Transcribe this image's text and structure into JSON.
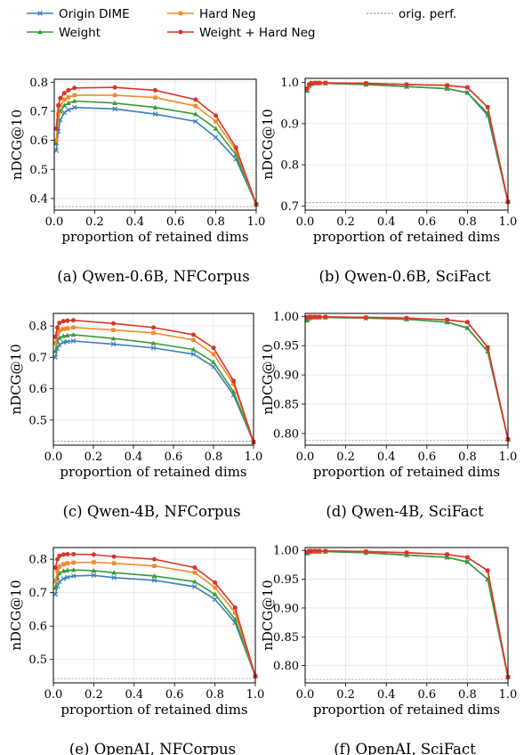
{
  "legend": [
    {
      "label": "Origin DIME",
      "color": "#3a7fb8",
      "marker": "x"
    },
    {
      "label": "Hard Neg",
      "color": "#f28a2b",
      "marker": "square"
    },
    {
      "label": "orig. perf.",
      "color": "#888888",
      "marker": "dash"
    },
    {
      "label": "Weight",
      "color": "#3a9a3a",
      "marker": "triangle"
    },
    {
      "label": "Weight + Hard Neg",
      "color": "#d8352a",
      "marker": "circle"
    }
  ],
  "chart_data": [
    {
      "type": "line",
      "caption": "(a) Qwen-0.6B, NFCorpus",
      "xlabel": "proportion of retained dims",
      "ylabel": "nDCG@10",
      "xlim": [
        0,
        1.0
      ],
      "ylim": [
        0.36,
        0.81
      ],
      "xticks": [
        "0.0",
        "0.2",
        "0.4",
        "0.6",
        "0.8",
        "1.0"
      ],
      "yticks": [
        "0.4",
        "0.5",
        "0.6",
        "0.7",
        "0.8"
      ],
      "grid": true,
      "orig_perf": 0.372,
      "series": [
        {
          "name": "Origin DIME",
          "x": [
            0.01,
            0.02,
            0.03,
            0.05,
            0.07,
            0.1,
            0.3,
            0.5,
            0.7,
            0.8,
            0.9,
            1.0
          ],
          "y": [
            0.565,
            0.63,
            0.67,
            0.695,
            0.705,
            0.713,
            0.708,
            0.69,
            0.665,
            0.61,
            0.535,
            0.38
          ]
        },
        {
          "name": "Hard Neg",
          "x": [
            0.01,
            0.02,
            0.03,
            0.05,
            0.07,
            0.1,
            0.3,
            0.5,
            0.7,
            0.8,
            0.9,
            1.0
          ],
          "y": [
            0.6,
            0.69,
            0.72,
            0.74,
            0.748,
            0.755,
            0.755,
            0.747,
            0.718,
            0.665,
            0.565,
            0.38
          ]
        },
        {
          "name": "Weight",
          "x": [
            0.01,
            0.02,
            0.03,
            0.05,
            0.07,
            0.1,
            0.3,
            0.5,
            0.7,
            0.8,
            0.9,
            1.0
          ],
          "y": [
            0.59,
            0.675,
            0.7,
            0.72,
            0.728,
            0.735,
            0.728,
            0.713,
            0.69,
            0.64,
            0.55,
            0.38
          ]
        },
        {
          "name": "Weight + Hard Neg",
          "x": [
            0.01,
            0.02,
            0.03,
            0.05,
            0.07,
            0.1,
            0.3,
            0.5,
            0.7,
            0.8,
            0.9,
            1.0
          ],
          "y": [
            0.64,
            0.72,
            0.745,
            0.762,
            0.772,
            0.78,
            0.782,
            0.772,
            0.74,
            0.685,
            0.575,
            0.38
          ]
        }
      ]
    },
    {
      "type": "line",
      "caption": "(b) Qwen-0.6B, SciFact",
      "xlabel": "proportion of retained dims",
      "ylabel": "nDCG@10",
      "xlim": [
        0,
        1.0
      ],
      "ylim": [
        0.69,
        1.01
      ],
      "xticks": [
        "0.0",
        "0.2",
        "0.4",
        "0.6",
        "0.8",
        "1.0"
      ],
      "yticks": [
        "0.7",
        "0.8",
        "0.9",
        "1.0"
      ],
      "grid": true,
      "orig_perf": 0.708,
      "series": [
        {
          "name": "Origin DIME",
          "x": [
            0.01,
            0.02,
            0.03,
            0.05,
            0.07,
            0.1,
            0.3,
            0.5,
            0.7,
            0.8,
            0.9,
            1.0
          ],
          "y": [
            0.98,
            0.992,
            0.996,
            0.998,
            0.998,
            0.998,
            0.995,
            0.99,
            0.985,
            0.975,
            0.92,
            0.71
          ]
        },
        {
          "name": "Hard Neg",
          "x": [
            0.01,
            0.02,
            0.03,
            0.05,
            0.07,
            0.1,
            0.3,
            0.5,
            0.7,
            0.8,
            0.9,
            1.0
          ],
          "y": [
            0.985,
            0.995,
            0.998,
            0.999,
            0.999,
            0.999,
            0.998,
            0.995,
            0.993,
            0.988,
            0.94,
            0.71
          ]
        },
        {
          "name": "Weight",
          "x": [
            0.01,
            0.02,
            0.03,
            0.05,
            0.07,
            0.1,
            0.3,
            0.5,
            0.7,
            0.8,
            0.9,
            1.0
          ],
          "y": [
            0.98,
            0.992,
            0.996,
            0.998,
            0.998,
            0.998,
            0.995,
            0.99,
            0.985,
            0.975,
            0.925,
            0.71
          ]
        },
        {
          "name": "Weight + Hard Neg",
          "x": [
            0.01,
            0.02,
            0.03,
            0.05,
            0.07,
            0.1,
            0.3,
            0.5,
            0.7,
            0.8,
            0.9,
            1.0
          ],
          "y": [
            0.985,
            0.995,
            0.998,
            0.999,
            0.999,
            0.999,
            0.998,
            0.995,
            0.993,
            0.988,
            0.94,
            0.71
          ]
        }
      ]
    },
    {
      "type": "line",
      "caption": "(c) Qwen-4B, NFCorpus",
      "xlabel": "proportion of retained dims",
      "ylabel": "nDCG@10",
      "xlim": [
        0,
        1.0
      ],
      "ylim": [
        0.42,
        0.84
      ],
      "xticks": [
        "0.0",
        "0.2",
        "0.4",
        "0.6",
        "0.8",
        "1.0"
      ],
      "yticks": [
        "0.5",
        "0.6",
        "0.7",
        "0.8"
      ],
      "grid": true,
      "orig_perf": 0.433,
      "series": [
        {
          "name": "Origin DIME",
          "x": [
            0.01,
            0.02,
            0.03,
            0.05,
            0.07,
            0.1,
            0.3,
            0.5,
            0.7,
            0.8,
            0.9,
            1.0
          ],
          "y": [
            0.7,
            0.728,
            0.74,
            0.748,
            0.75,
            0.752,
            0.742,
            0.73,
            0.71,
            0.67,
            0.58,
            0.43
          ]
        },
        {
          "name": "Hard Neg",
          "x": [
            0.01,
            0.02,
            0.03,
            0.05,
            0.07,
            0.1,
            0.3,
            0.5,
            0.7,
            0.8,
            0.9,
            1.0
          ],
          "y": [
            0.745,
            0.775,
            0.785,
            0.79,
            0.792,
            0.795,
            0.787,
            0.778,
            0.755,
            0.71,
            0.615,
            0.43
          ]
        },
        {
          "name": "Weight",
          "x": [
            0.01,
            0.02,
            0.03,
            0.05,
            0.07,
            0.1,
            0.3,
            0.5,
            0.7,
            0.8,
            0.9,
            1.0
          ],
          "y": [
            0.72,
            0.75,
            0.762,
            0.768,
            0.77,
            0.772,
            0.76,
            0.745,
            0.725,
            0.685,
            0.59,
            0.43
          ]
        },
        {
          "name": "Weight + Hard Neg",
          "x": [
            0.01,
            0.02,
            0.03,
            0.05,
            0.07,
            0.1,
            0.3,
            0.5,
            0.7,
            0.8,
            0.9,
            1.0
          ],
          "y": [
            0.765,
            0.795,
            0.81,
            0.815,
            0.817,
            0.818,
            0.808,
            0.795,
            0.772,
            0.73,
            0.625,
            0.43
          ]
        }
      ]
    },
    {
      "type": "line",
      "caption": "(d) Qwen-4B, SciFact",
      "xlabel": "proportion of retained dims",
      "ylabel": "nDCG@10",
      "xlim": [
        0,
        1.0
      ],
      "ylim": [
        0.78,
        1.005
      ],
      "xticks": [
        "0.0",
        "0.2",
        "0.4",
        "0.6",
        "0.8",
        "1.0"
      ],
      "yticks": [
        "0.80",
        "0.85",
        "0.90",
        "0.95",
        "1.00"
      ],
      "grid": true,
      "orig_perf": 0.788,
      "series": [
        {
          "name": "Origin DIME",
          "x": [
            0.01,
            0.02,
            0.03,
            0.05,
            0.07,
            0.1,
            0.3,
            0.5,
            0.7,
            0.8,
            0.9,
            1.0
          ],
          "y": [
            0.995,
            0.997,
            0.998,
            0.998,
            0.998,
            0.998,
            0.997,
            0.995,
            0.99,
            0.98,
            0.94,
            0.79
          ]
        },
        {
          "name": "Hard Neg",
          "x": [
            0.01,
            0.02,
            0.03,
            0.05,
            0.07,
            0.1,
            0.3,
            0.5,
            0.7,
            0.8,
            0.9,
            1.0
          ],
          "y": [
            0.998,
            0.999,
            0.999,
            0.999,
            0.999,
            0.999,
            0.998,
            0.997,
            0.994,
            0.99,
            0.947,
            0.79
          ]
        },
        {
          "name": "Weight",
          "x": [
            0.01,
            0.02,
            0.03,
            0.05,
            0.07,
            0.1,
            0.3,
            0.5,
            0.7,
            0.8,
            0.9,
            1.0
          ],
          "y": [
            0.993,
            0.997,
            0.998,
            0.998,
            0.998,
            0.998,
            0.997,
            0.995,
            0.99,
            0.98,
            0.94,
            0.79
          ]
        },
        {
          "name": "Weight + Hard Neg",
          "x": [
            0.01,
            0.02,
            0.03,
            0.05,
            0.07,
            0.1,
            0.3,
            0.5,
            0.7,
            0.8,
            0.9,
            1.0
          ],
          "y": [
            0.998,
            0.999,
            0.999,
            0.999,
            0.999,
            0.999,
            0.998,
            0.997,
            0.994,
            0.99,
            0.947,
            0.79
          ]
        }
      ]
    },
    {
      "type": "line",
      "caption": "(e) OpenAI, NFCorpus",
      "xlabel": "proportion of retained dims",
      "ylabel": "nDCG@10",
      "xlim": [
        0,
        1.0
      ],
      "ylim": [
        0.43,
        0.835
      ],
      "xticks": [
        "0.0",
        "0.2",
        "0.4",
        "0.6",
        "0.8",
        "1.0"
      ],
      "yticks": [
        "0.5",
        "0.6",
        "0.7",
        "0.8"
      ],
      "grid": true,
      "orig_perf": 0.443,
      "series": [
        {
          "name": "Origin DIME",
          "x": [
            0.01,
            0.02,
            0.03,
            0.05,
            0.07,
            0.1,
            0.2,
            0.3,
            0.5,
            0.7,
            0.8,
            0.9,
            1.0
          ],
          "y": [
            0.695,
            0.72,
            0.733,
            0.742,
            0.746,
            0.75,
            0.752,
            0.745,
            0.737,
            0.718,
            0.68,
            0.61,
            0.45
          ]
        },
        {
          "name": "Hard Neg",
          "x": [
            0.01,
            0.02,
            0.03,
            0.05,
            0.07,
            0.1,
            0.2,
            0.3,
            0.5,
            0.7,
            0.8,
            0.9,
            1.0
          ],
          "y": [
            0.735,
            0.765,
            0.778,
            0.785,
            0.788,
            0.79,
            0.791,
            0.788,
            0.78,
            0.76,
            0.715,
            0.64,
            0.45
          ]
        },
        {
          "name": "Weight",
          "x": [
            0.01,
            0.02,
            0.03,
            0.05,
            0.07,
            0.1,
            0.2,
            0.3,
            0.5,
            0.7,
            0.8,
            0.9,
            1.0
          ],
          "y": [
            0.715,
            0.745,
            0.758,
            0.765,
            0.767,
            0.768,
            0.766,
            0.76,
            0.75,
            0.733,
            0.695,
            0.62,
            0.45
          ]
        },
        {
          "name": "Weight + Hard Neg",
          "x": [
            0.01,
            0.02,
            0.03,
            0.05,
            0.07,
            0.1,
            0.2,
            0.3,
            0.5,
            0.7,
            0.8,
            0.9,
            1.0
          ],
          "y": [
            0.775,
            0.8,
            0.81,
            0.814,
            0.815,
            0.815,
            0.814,
            0.808,
            0.8,
            0.775,
            0.73,
            0.655,
            0.45
          ]
        }
      ]
    },
    {
      "type": "line",
      "caption": "(f) OpenAI, SciFact",
      "xlabel": "proportion of retained dims",
      "ylabel": "nDCG@10",
      "xlim": [
        0,
        1.0
      ],
      "ylim": [
        0.77,
        1.005
      ],
      "xticks": [
        "0.0",
        "0.2",
        "0.4",
        "0.6",
        "0.8",
        "1.0"
      ],
      "yticks": [
        "0.80",
        "0.85",
        "0.90",
        "0.95",
        "1.00"
      ],
      "grid": true,
      "orig_perf": 0.776,
      "series": [
        {
          "name": "Origin DIME",
          "x": [
            0.01,
            0.02,
            0.03,
            0.05,
            0.07,
            0.1,
            0.3,
            0.5,
            0.7,
            0.8,
            0.9,
            1.0
          ],
          "y": [
            0.995,
            0.997,
            0.998,
            0.998,
            0.998,
            0.998,
            0.996,
            0.992,
            0.988,
            0.98,
            0.95,
            0.78
          ]
        },
        {
          "name": "Hard Neg",
          "x": [
            0.01,
            0.02,
            0.03,
            0.05,
            0.07,
            0.1,
            0.3,
            0.5,
            0.7,
            0.8,
            0.9,
            1.0
          ],
          "y": [
            0.997,
            0.999,
            0.999,
            0.999,
            0.999,
            0.999,
            0.998,
            0.996,
            0.993,
            0.988,
            0.965,
            0.78
          ]
        },
        {
          "name": "Weight",
          "x": [
            0.01,
            0.02,
            0.03,
            0.05,
            0.07,
            0.1,
            0.3,
            0.5,
            0.7,
            0.8,
            0.9,
            1.0
          ],
          "y": [
            0.995,
            0.997,
            0.998,
            0.998,
            0.998,
            0.998,
            0.996,
            0.992,
            0.988,
            0.98,
            0.95,
            0.78
          ]
        },
        {
          "name": "Weight + Hard Neg",
          "x": [
            0.01,
            0.02,
            0.03,
            0.05,
            0.07,
            0.1,
            0.3,
            0.5,
            0.7,
            0.8,
            0.9,
            1.0
          ],
          "y": [
            0.997,
            0.999,
            0.999,
            0.999,
            0.999,
            0.999,
            0.998,
            0.996,
            0.993,
            0.988,
            0.965,
            0.78
          ]
        }
      ]
    }
  ]
}
